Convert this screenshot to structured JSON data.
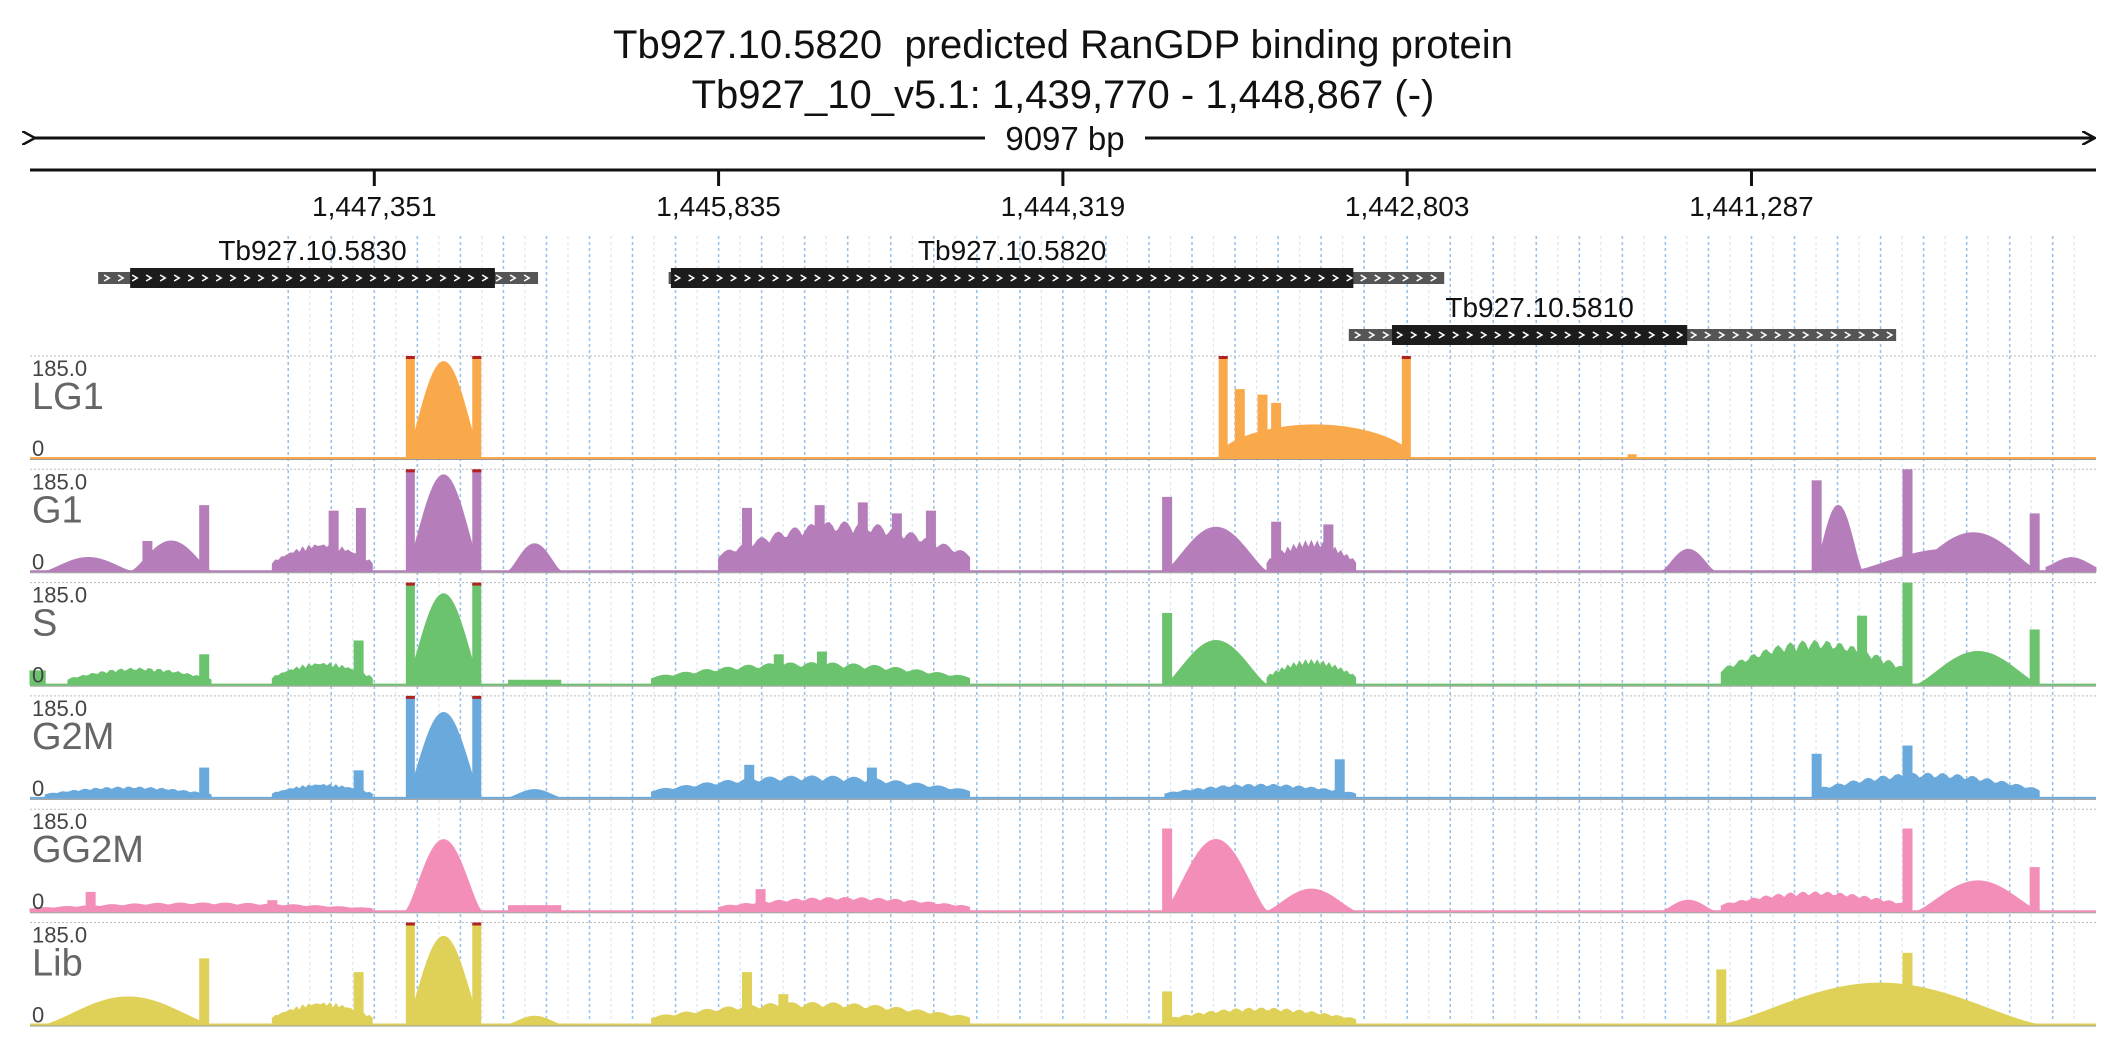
{
  "chart_data": {
    "type": "area",
    "title": "Tb927.10.5820  predicted RanGDP binding protein",
    "subtitle": "Tb927_10_v5.1: 1,439,770 - 1,448,867 (-)",
    "span_label": "9097 bp",
    "region": {
      "start": 1448867,
      "end": 1439770,
      "strand": "-"
    },
    "coordinate_ticks": [
      {
        "position": 1447351,
        "label": "1,447,351"
      },
      {
        "position": 1445835,
        "label": "1,445,835"
      },
      {
        "position": 1444319,
        "label": "1,444,319"
      },
      {
        "position": 1442803,
        "label": "1,442,803"
      },
      {
        "position": 1441287,
        "label": "1,441,287"
      }
    ],
    "genes": [
      {
        "name": "Tb927.10.5830",
        "utr5_start": 1448567,
        "cds_start": 1448426,
        "cds_end": 1446820,
        "utr3_end": 1446630,
        "row": 0
      },
      {
        "name": "Tb927.10.5820",
        "utr5_start": 1446055,
        "cds_start": 1446045,
        "cds_end": 1443040,
        "utr3_end": 1442640,
        "row": 0
      },
      {
        "name": "Tb927.10.5810",
        "utr5_start": 1443060,
        "cds_start": 1442870,
        "cds_end": 1441570,
        "utr3_end": 1440650,
        "row": 1
      }
    ],
    "tracks": [
      {
        "name": "LG1",
        "max_label": "185.0",
        "min_label": "0",
        "ylim": [
          0,
          185
        ],
        "color": "#f9a94a",
        "peaks": [
          {
            "start": 1447212,
            "end": 1446880,
            "height": 175,
            "shape": "bell",
            "edge_spikes": 185
          },
          {
            "start": 1443633,
            "end": 1442787,
            "height": 60,
            "shape": "plateau",
            "edge_spikes": 185,
            "spikes": [
              [
                1443540,
                125
              ],
              [
                1443440,
                115
              ],
              [
                1443380,
                100
              ]
            ]
          },
          {
            "start": 1441830,
            "end": 1441795,
            "height": 6,
            "shape": "flat"
          }
        ]
      },
      {
        "name": "G1",
        "max_label": "185.0",
        "min_label": "0",
        "ylim": [
          0,
          185
        ],
        "color": "#b57ebb",
        "peaks": [
          {
            "start": 1448800,
            "end": 1448420,
            "height": 25,
            "shape": "bell"
          },
          {
            "start": 1448420,
            "end": 1448070,
            "height": 55,
            "shape": "bell",
            "spikes": [
              [
                1448350,
                55
              ],
              [
                1448100,
                120
              ]
            ]
          },
          {
            "start": 1447800,
            "end": 1447360,
            "height": 50,
            "shape": "noisy",
            "spikes": [
              [
                1447530,
                110
              ],
              [
                1447410,
                115
              ]
            ]
          },
          {
            "start": 1447212,
            "end": 1446880,
            "height": 175,
            "shape": "bell",
            "edge_spikes": 185
          },
          {
            "start": 1446760,
            "end": 1446530,
            "height": 50,
            "shape": "bell"
          },
          {
            "start": 1445835,
            "end": 1444730,
            "height": 90,
            "shape": "noisy",
            "spikes": [
              [
                1445710,
                115
              ],
              [
                1445390,
                120
              ],
              [
                1445200,
                125
              ],
              [
                1445050,
                105
              ],
              [
                1444900,
                110
              ]
            ]
          },
          {
            "start": 1443870,
            "end": 1443420,
            "height": 80,
            "shape": "bell",
            "spikes": [
              [
                1443860,
                135
              ]
            ]
          },
          {
            "start": 1443420,
            "end": 1443030,
            "height": 55,
            "shape": "noisy",
            "spikes": [
              [
                1443380,
                90
              ],
              [
                1443150,
                85
              ]
            ]
          },
          {
            "start": 1441680,
            "end": 1441450,
            "height": 40,
            "shape": "bell"
          },
          {
            "start": 1440840,
            "end": 1440000,
            "height": 40,
            "shape": "bell"
          },
          {
            "start": 1441010,
            "end": 1440800,
            "height": 120,
            "shape": "bell",
            "spikes": [
              [
                1441000,
                165
              ],
              [
                1440600,
                185
              ]
            ]
          },
          {
            "start": 1440600,
            "end": 1440020,
            "height": 70,
            "shape": "bell",
            "spikes": [
              [
                1440040,
                105
              ]
            ]
          },
          {
            "start": 1439770,
            "end": 1439990,
            "height": 25,
            "shape": "noisy"
          }
        ]
      },
      {
        "name": "S",
        "max_label": "185.0",
        "min_label": "0",
        "ylim": [
          0,
          185
        ],
        "color": "#6cc36e",
        "peaks": [
          {
            "start": 1448867,
            "end": 1448800,
            "height": 25,
            "shape": "flat"
          },
          {
            "start": 1448700,
            "end": 1448070,
            "height": 30,
            "shape": "noisy",
            "spikes": [
              [
                1448100,
                55
              ]
            ]
          },
          {
            "start": 1447800,
            "end": 1447360,
            "height": 40,
            "shape": "noisy",
            "spikes": [
              [
                1447420,
                80
              ]
            ]
          },
          {
            "start": 1447212,
            "end": 1446880,
            "height": 165,
            "shape": "bell",
            "edge_spikes": 185
          },
          {
            "start": 1446760,
            "end": 1446530,
            "height": 8,
            "shape": "flat"
          },
          {
            "start": 1446130,
            "end": 1444730,
            "height": 40,
            "shape": "noisy",
            "spikes": [
              [
                1445570,
                55
              ],
              [
                1445380,
                60
              ]
            ]
          },
          {
            "start": 1443870,
            "end": 1443420,
            "height": 80,
            "shape": "bell",
            "spikes": [
              [
                1443860,
                130
              ]
            ]
          },
          {
            "start": 1443420,
            "end": 1443030,
            "height": 45,
            "shape": "noisy"
          },
          {
            "start": 1441420,
            "end": 1440600,
            "height": 80,
            "shape": "noisy",
            "spikes": [
              [
                1440800,
                125
              ],
              [
                1440600,
                185
              ]
            ]
          },
          {
            "start": 1440560,
            "end": 1440020,
            "height": 60,
            "shape": "bell",
            "spikes": [
              [
                1440040,
                100
              ]
            ]
          }
        ]
      },
      {
        "name": "G2M",
        "max_label": "185.0",
        "min_label": "0",
        "ylim": [
          0,
          185
        ],
        "color": "#6aa9dc",
        "peaks": [
          {
            "start": 1448800,
            "end": 1448070,
            "height": 20,
            "shape": "noisy",
            "spikes": [
              [
                1448100,
                55
              ]
            ]
          },
          {
            "start": 1447800,
            "end": 1447360,
            "height": 25,
            "shape": "noisy",
            "spikes": [
              [
                1447420,
                50
              ]
            ]
          },
          {
            "start": 1447212,
            "end": 1446880,
            "height": 155,
            "shape": "bell",
            "edge_spikes": 185
          },
          {
            "start": 1446760,
            "end": 1446530,
            "height": 15,
            "shape": "bell"
          },
          {
            "start": 1446130,
            "end": 1444730,
            "height": 40,
            "shape": "noisy",
            "spikes": [
              [
                1445700,
                60
              ],
              [
                1445160,
                55
              ]
            ]
          },
          {
            "start": 1443870,
            "end": 1443030,
            "height": 25,
            "shape": "noisy",
            "spikes": [
              [
                1443100,
                70
              ]
            ]
          },
          {
            "start": 1441010,
            "end": 1440020,
            "height": 45,
            "shape": "noisy",
            "spikes": [
              [
                1441000,
                80
              ],
              [
                1440600,
                95
              ]
            ]
          }
        ]
      },
      {
        "name": "GG2M",
        "max_label": "185.0",
        "min_label": "0",
        "ylim": [
          0,
          185
        ],
        "color": "#f38eb9",
        "peaks": [
          {
            "start": 1448867,
            "end": 1447360,
            "height": 15,
            "shape": "noisy",
            "spikes": [
              [
                1448600,
                35
              ],
              [
                1447800,
                20
              ]
            ]
          },
          {
            "start": 1447212,
            "end": 1446880,
            "height": 130,
            "shape": "bell"
          },
          {
            "start": 1446760,
            "end": 1446530,
            "height": 10,
            "shape": "flat"
          },
          {
            "start": 1445835,
            "end": 1444730,
            "height": 25,
            "shape": "noisy",
            "spikes": [
              [
                1445650,
                40
              ]
            ]
          },
          {
            "start": 1443870,
            "end": 1443420,
            "height": 130,
            "shape": "bell",
            "spikes": [
              [
                1443860,
                150
              ]
            ]
          },
          {
            "start": 1443420,
            "end": 1443030,
            "height": 40,
            "shape": "bell"
          },
          {
            "start": 1441680,
            "end": 1441450,
            "height": 20,
            "shape": "bell"
          },
          {
            "start": 1441420,
            "end": 1440600,
            "height": 35,
            "shape": "noisy",
            "spikes": [
              [
                1440600,
                150
              ]
            ]
          },
          {
            "start": 1440560,
            "end": 1440020,
            "height": 55,
            "shape": "bell",
            "spikes": [
              [
                1440040,
                80
              ]
            ]
          }
        ]
      },
      {
        "name": "Lib",
        "max_label": "185.0",
        "min_label": "0",
        "ylim": [
          0,
          185
        ],
        "color": "#dfd158",
        "peaks": [
          {
            "start": 1448800,
            "end": 1448070,
            "height": 50,
            "shape": "bell",
            "spikes": [
              [
                1448100,
                120
              ]
            ]
          },
          {
            "start": 1447800,
            "end": 1447360,
            "height": 40,
            "shape": "noisy",
            "spikes": [
              [
                1447420,
                95
              ]
            ]
          },
          {
            "start": 1447212,
            "end": 1446880,
            "height": 160,
            "shape": "bell",
            "edge_spikes": 185
          },
          {
            "start": 1446760,
            "end": 1446530,
            "height": 15,
            "shape": "bell"
          },
          {
            "start": 1446130,
            "end": 1444730,
            "height": 40,
            "shape": "noisy",
            "spikes": [
              [
                1445710,
                95
              ],
              [
                1445550,
                55
              ]
            ]
          },
          {
            "start": 1443870,
            "end": 1443030,
            "height": 30,
            "shape": "noisy",
            "spikes": [
              [
                1443860,
                60
              ]
            ]
          },
          {
            "start": 1441420,
            "end": 1440020,
            "height": 75,
            "shape": "bell",
            "spikes": [
              [
                1441420,
                100
              ],
              [
                1440600,
                130
              ]
            ]
          }
        ]
      }
    ],
    "grid": true
  }
}
